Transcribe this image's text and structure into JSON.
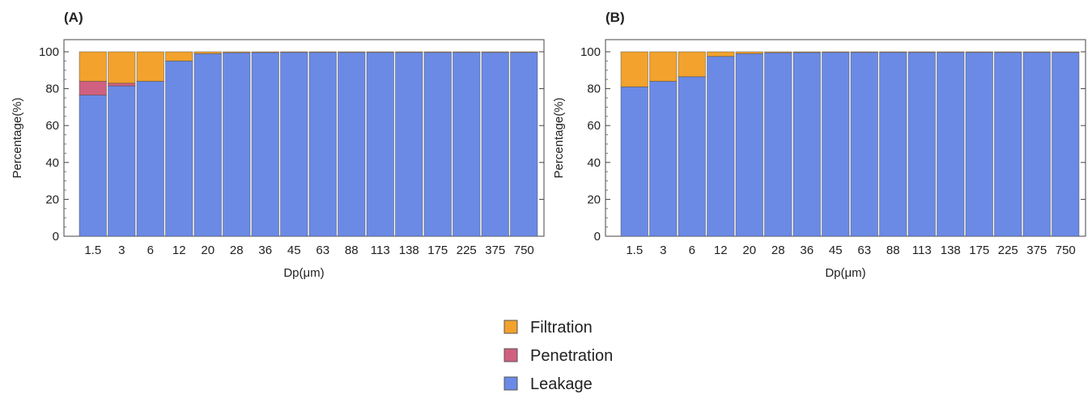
{
  "chart_data": [
    {
      "type": "bar",
      "stacked": true,
      "panel_label": "(A)",
      "xlabel": "Dp(μm)",
      "ylabel": "Percentage(%)",
      "ylim": [
        0,
        100
      ],
      "yticks": [
        "0",
        "20",
        "40",
        "60",
        "80",
        "100"
      ],
      "categories": [
        "1.5",
        "3",
        "6",
        "12",
        "20",
        "28",
        "36",
        "45",
        "63",
        "88",
        "113",
        "138",
        "175",
        "225",
        "375",
        "750"
      ],
      "series": [
        {
          "name": "Leakage",
          "color": "#6a8ae6",
          "values": [
            76.5,
            81.5,
            84,
            95,
            99,
            99.5,
            99.6,
            99.7,
            99.7,
            99.7,
            99.7,
            99.7,
            99.7,
            99.7,
            99.7,
            99.7
          ]
        },
        {
          "name": "Penetration",
          "color": "#d0607f",
          "values": [
            7.5,
            1.5,
            0,
            0,
            0,
            0,
            0,
            0,
            0,
            0,
            0,
            0,
            0,
            0,
            0,
            0
          ]
        },
        {
          "name": "Filtration",
          "color": "#f2a22d",
          "values": [
            16,
            17,
            16,
            5,
            1,
            0.5,
            0.4,
            0.3,
            0.3,
            0.3,
            0.3,
            0.3,
            0.3,
            0.3,
            0.3,
            0.3
          ]
        }
      ]
    },
    {
      "type": "bar",
      "stacked": true,
      "panel_label": "(B)",
      "xlabel": "Dp(μm)",
      "ylabel": "Percentage(%)",
      "ylim": [
        0,
        100
      ],
      "yticks": [
        "0",
        "20",
        "40",
        "60",
        "80",
        "100"
      ],
      "categories": [
        "1.5",
        "3",
        "6",
        "12",
        "20",
        "28",
        "36",
        "45",
        "63",
        "88",
        "113",
        "138",
        "175",
        "225",
        "375",
        "750"
      ],
      "series": [
        {
          "name": "Leakage",
          "color": "#6a8ae6",
          "values": [
            81,
            84,
            86.5,
            97.5,
            99,
            99.5,
            99.6,
            99.7,
            99.7,
            99.7,
            99.7,
            99.7,
            99.7,
            99.7,
            99.7,
            99.7
          ]
        },
        {
          "name": "Penetration",
          "color": "#d0607f",
          "values": [
            0,
            0,
            0,
            0,
            0,
            0,
            0,
            0,
            0,
            0,
            0,
            0,
            0,
            0,
            0,
            0
          ]
        },
        {
          "name": "Filtration",
          "color": "#f2a22d",
          "values": [
            19,
            16,
            13.5,
            2.5,
            1,
            0.5,
            0.4,
            0.3,
            0.3,
            0.3,
            0.3,
            0.3,
            0.3,
            0.3,
            0.3,
            0.3
          ]
        }
      ]
    }
  ],
  "legend": {
    "placement": "bottom-center",
    "items": [
      {
        "label": "Filtration",
        "color": "#f2a22d"
      },
      {
        "label": "Penetration",
        "color": "#d0607f"
      },
      {
        "label": "Leakage",
        "color": "#6a8ae6"
      }
    ]
  }
}
